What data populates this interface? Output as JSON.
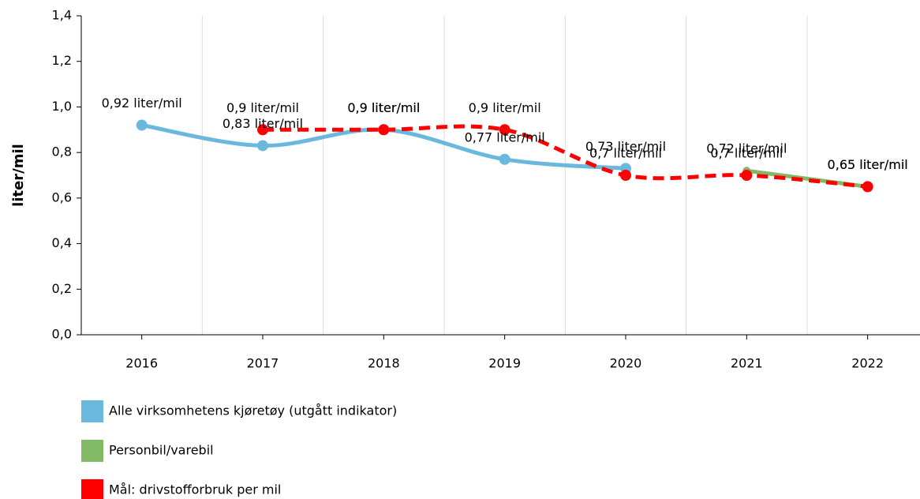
{
  "chart_data": {
    "type": "line",
    "y_label": "liter/mil",
    "categories": [
      "2016",
      "2017",
      "2018",
      "2019",
      "2020",
      "2021",
      "2022"
    ],
    "ylim": [
      0,
      1.4
    ],
    "yticks": [
      {
        "value": 0,
        "label": "0,0"
      },
      {
        "value": 0.2,
        "label": "0,2"
      },
      {
        "value": 0.4,
        "label": "0,4"
      },
      {
        "value": 0.6,
        "label": "0,6"
      },
      {
        "value": 0.8,
        "label": "0,8"
      },
      {
        "value": 1.0,
        "label": "1,0"
      },
      {
        "value": 1.2,
        "label": "1,2"
      },
      {
        "value": 1.4,
        "label": "1,4"
      }
    ],
    "grid": true,
    "series": [
      {
        "name": "Alle virksomhetens kjøretøy (utgått indikator)",
        "color": "#6bb8de",
        "dashed": false,
        "values": [
          0.92,
          0.83,
          0.9,
          0.77,
          0.73,
          null,
          null
        ],
        "value_labels": [
          "0,92 liter/mil",
          "0,83 liter/mil",
          "0,9 liter/mil",
          "0,77 liter/mil",
          "0,73 liter/mil",
          null,
          null
        ]
      },
      {
        "name": "Personbil/varebil",
        "color": "#82b965",
        "dashed": false,
        "values": [
          null,
          null,
          null,
          null,
          null,
          0.72,
          0.65
        ],
        "value_labels": [
          null,
          null,
          null,
          null,
          null,
          "0,72 liter/mil",
          "0,65 liter/mil"
        ]
      },
      {
        "name": "Mål: drivstofforbruk per mil",
        "color": "#ff0000",
        "dashed": true,
        "values": [
          null,
          0.9,
          0.9,
          0.9,
          0.7,
          0.7,
          0.65
        ],
        "value_labels": [
          null,
          "0,9 liter/mil",
          "0,9 liter/mil",
          "0,9 liter/mil",
          "0,7 liter/mil",
          "0,7 liter/mil",
          "0,65 liter/mil"
        ]
      }
    ]
  }
}
